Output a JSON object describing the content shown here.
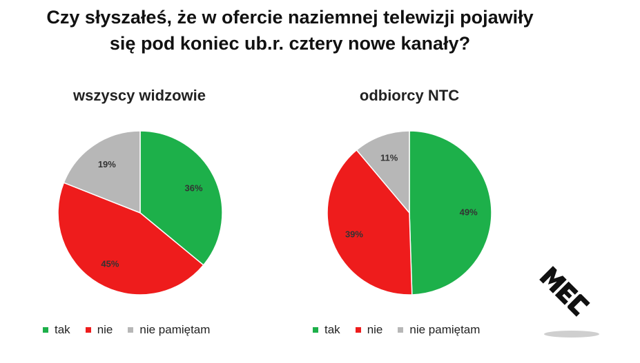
{
  "title": {
    "line1": "Czy słyszałeś, że w ofercie naziemnej telewizji pojawiły",
    "line2": "się pod koniec ub.r. cztery nowe kanały?"
  },
  "colors": {
    "tak": "#1db04a",
    "nie": "#ee1c1c",
    "nie_pamietam": "#b7b7b7"
  },
  "chart_data": [
    {
      "type": "pie",
      "title": "wszyscy widzowie",
      "categories": [
        "tak",
        "nie",
        "nie pamiętam"
      ],
      "values": [
        36,
        45,
        19
      ],
      "labels": [
        "36%",
        "45%",
        "19%"
      ],
      "legend": [
        "tak",
        "nie",
        "nie pamiętam"
      ],
      "legend_position": "bottom"
    },
    {
      "type": "pie",
      "title": "odbiorcy NTC",
      "categories": [
        "tak",
        "nie",
        "nie pamiętam"
      ],
      "values": [
        49,
        39,
        11
      ],
      "labels": [
        "49%",
        "39%",
        "11%"
      ],
      "legend": [
        "tak",
        "nie",
        "nie pamiętam"
      ],
      "legend_position": "bottom"
    }
  ],
  "logo": {
    "text": "MEC",
    "icon": "mec-logo"
  }
}
